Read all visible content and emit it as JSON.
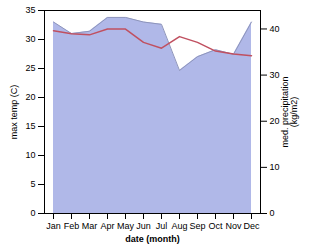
{
  "chart_data": {
    "type": "line",
    "categories": [
      "Jan",
      "Feb",
      "Mar",
      "Apr",
      "May",
      "Jun",
      "Jul",
      "Aug",
      "Sep",
      "Oct",
      "Nov",
      "Dec"
    ],
    "series": [
      {
        "type": "area",
        "axis": "y2",
        "color": "#b0b8e8",
        "values": [
          41.5,
          39.0,
          39.5,
          42.5,
          42.5,
          41.5,
          41.0,
          31.0,
          34.0,
          35.5,
          34.5,
          41.5
        ]
      },
      {
        "type": "line",
        "color": "#c05060",
        "values": [
          31.5,
          31.0,
          30.8,
          31.8,
          31.8,
          29.5,
          28.5,
          30.5,
          29.5,
          28.0,
          27.5,
          27.2
        ]
      }
    ],
    "xlabel": "date (month)",
    "ylabel": "max temp (C)",
    "y2label": "med. precipitation\n(kg/m2)",
    "ylim": [
      0,
      35
    ],
    "yticks": [
      0,
      5,
      10,
      15,
      20,
      25,
      30,
      35
    ],
    "y2lim": [
      0,
      44
    ],
    "y2ticks": [
      0,
      10,
      20,
      30,
      40
    ]
  }
}
